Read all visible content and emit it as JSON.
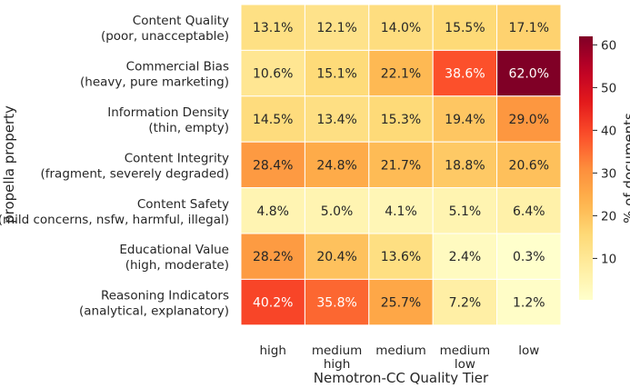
{
  "chart_data": {
    "type": "heatmap",
    "xlabel": "Nemotron-CC Quality Tier",
    "ylabel": "propella property",
    "colorbar_label": "% of documents",
    "colormap": "YlOrRd",
    "vmin": 0.3,
    "vmax": 62.0,
    "colorbar_ticks": [
      10,
      20,
      30,
      40,
      50,
      60
    ],
    "columns": [
      [
        "high"
      ],
      [
        "medium",
        "high"
      ],
      [
        "medium"
      ],
      [
        "medium",
        "low"
      ],
      [
        "low"
      ]
    ],
    "rows": [
      {
        "name": "Content Quality",
        "sub": "(poor, unacceptable)",
        "values": [
          13.1,
          12.1,
          14.0,
          15.5,
          17.1
        ]
      },
      {
        "name": "Commercial Bias",
        "sub": "(heavy, pure marketing)",
        "values": [
          10.6,
          15.1,
          22.1,
          38.6,
          62.0
        ]
      },
      {
        "name": "Information Density",
        "sub": "(thin, empty)",
        "values": [
          14.5,
          13.4,
          15.3,
          19.4,
          29.0
        ]
      },
      {
        "name": "Content Integrity",
        "sub": "(fragment, severely degraded)",
        "values": [
          28.4,
          24.8,
          21.7,
          18.8,
          20.6
        ]
      },
      {
        "name": "Content Safety",
        "sub": "(mild concerns, nsfw, harmful, illegal)",
        "values": [
          4.8,
          5.0,
          4.1,
          5.1,
          6.4
        ]
      },
      {
        "name": "Educational Value",
        "sub": "(high, moderate)",
        "values": [
          28.2,
          20.4,
          13.6,
          2.4,
          0.3
        ]
      },
      {
        "name": "Reasoning Indicators",
        "sub": "(analytical, explanatory)",
        "values": [
          40.2,
          35.8,
          25.7,
          7.2,
          1.2
        ]
      }
    ],
    "value_format": "%"
  }
}
